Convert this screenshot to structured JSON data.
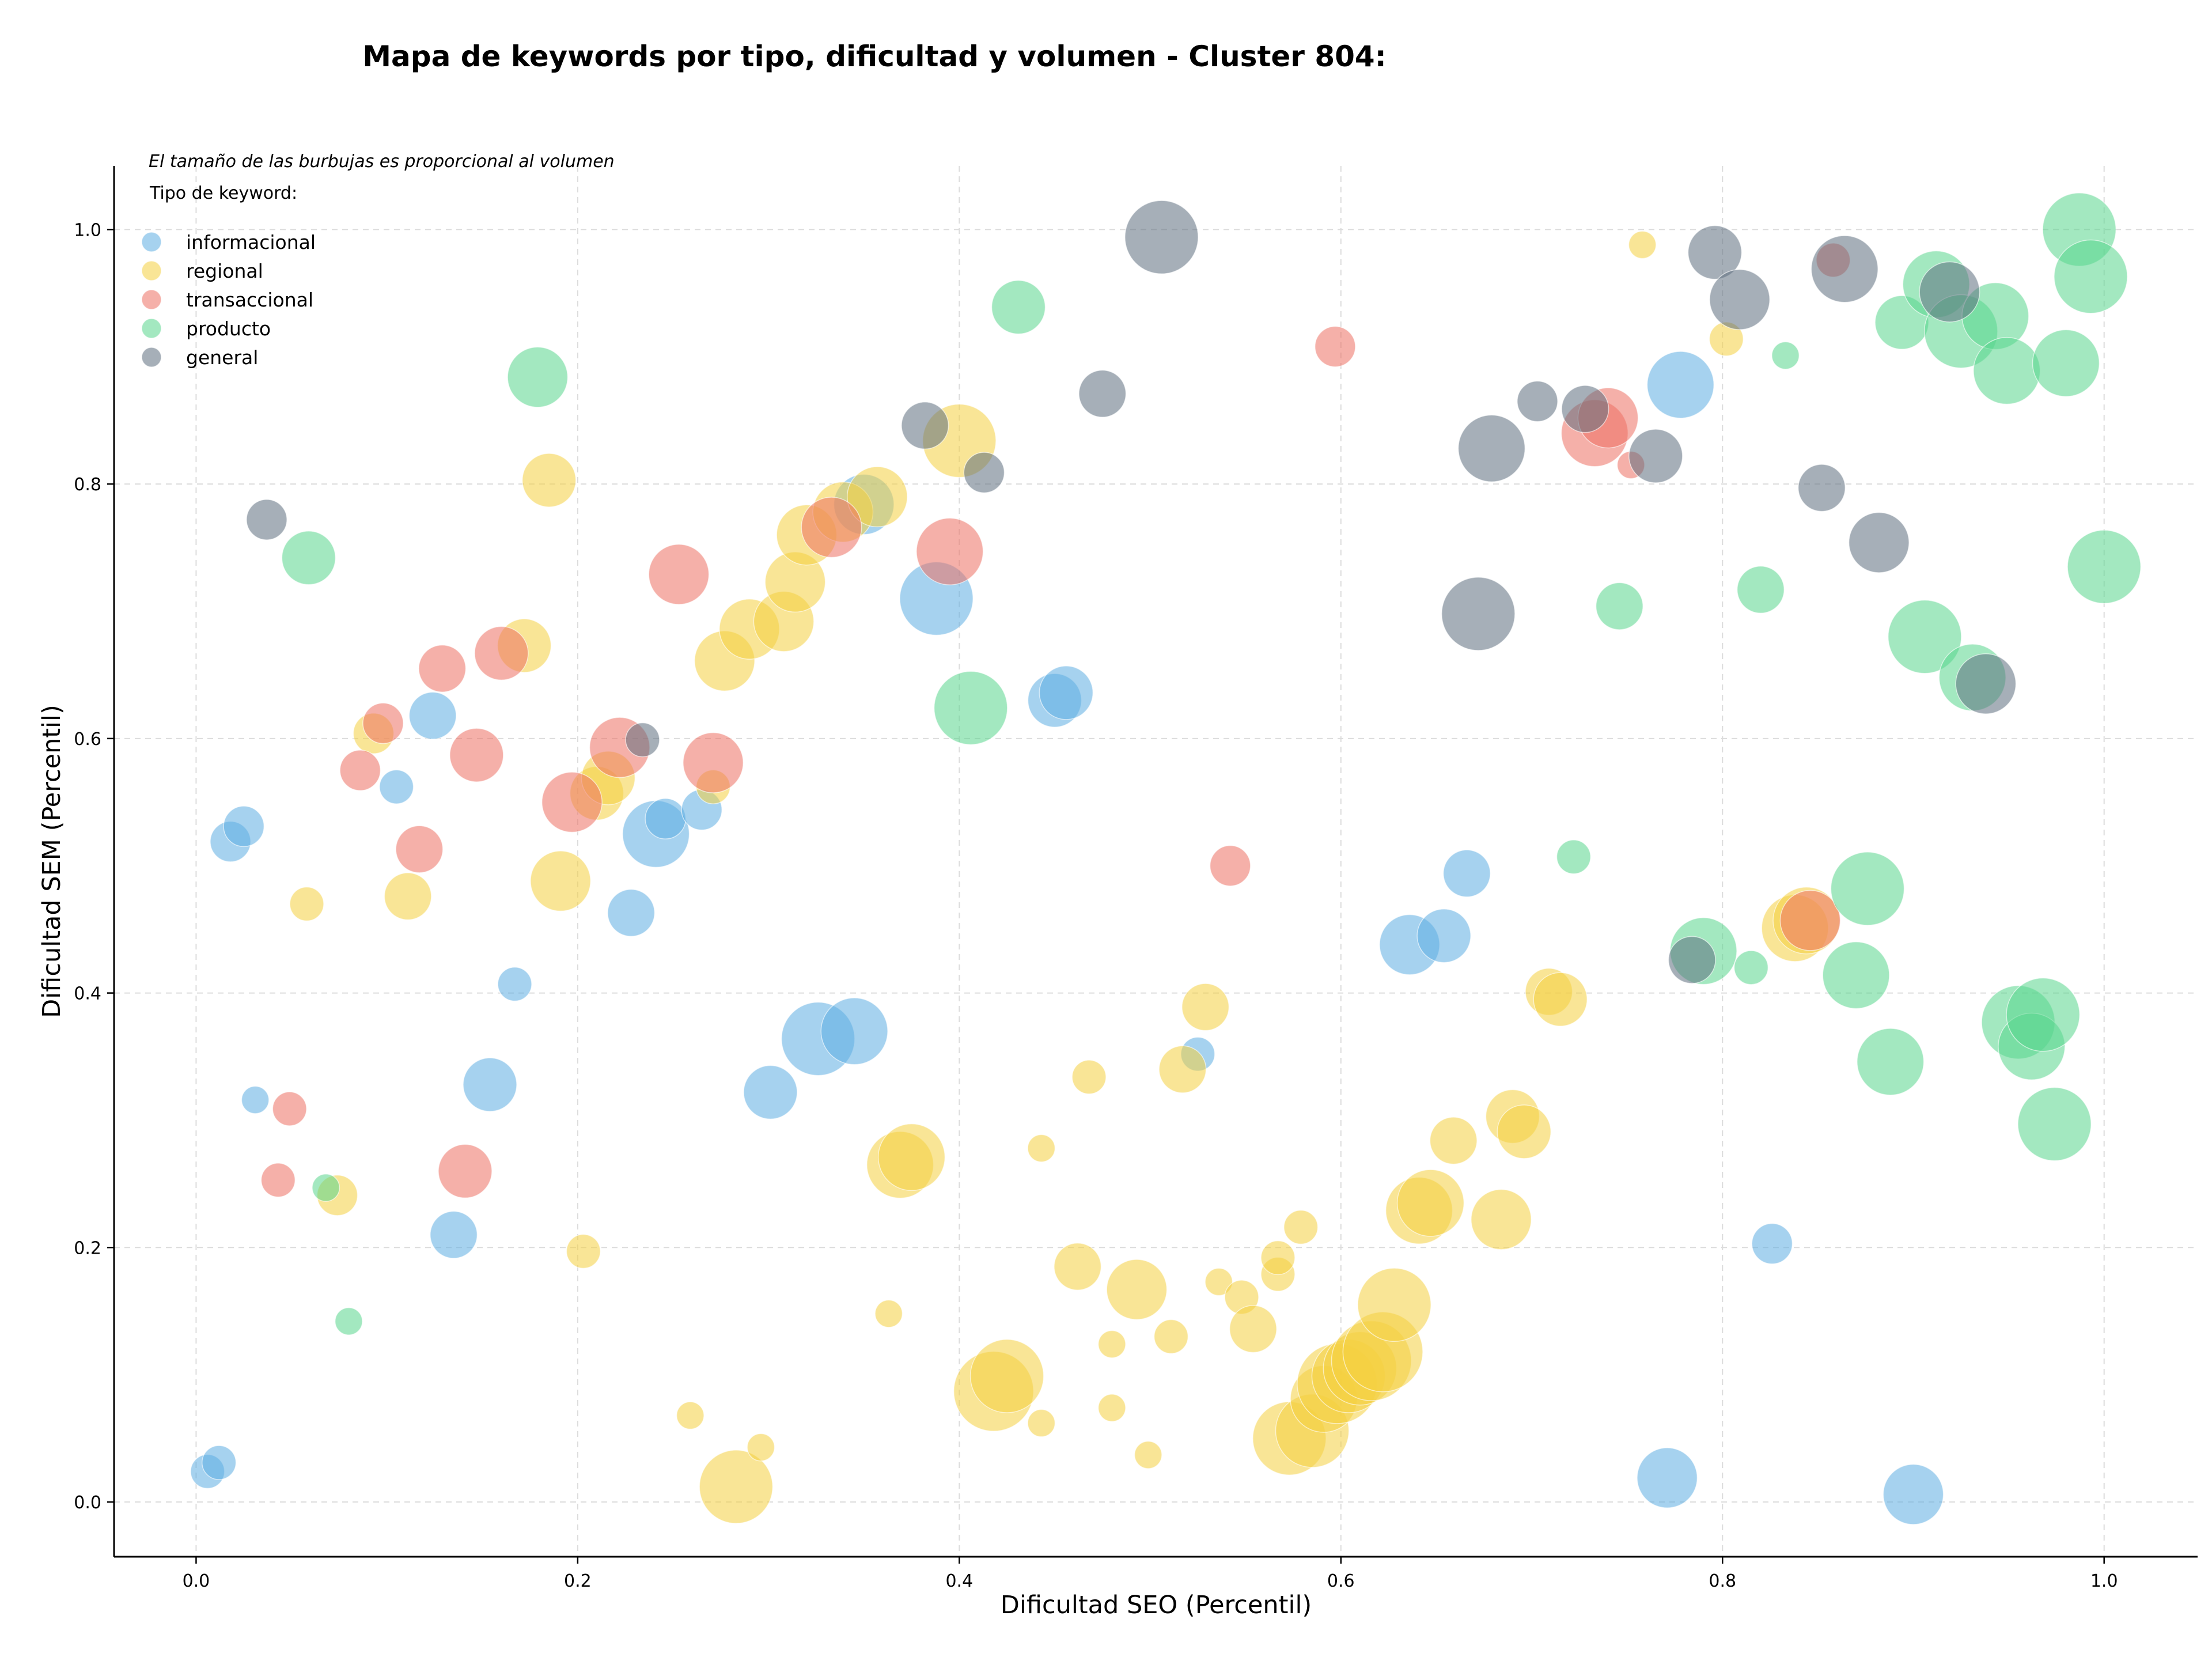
{
  "chart_data": {
    "type": "scatter",
    "title": "Mapa de keywords por tipo, dificultad y volumen - Cluster 804:",
    "xlabel": "Dificultad SEO (Percentil)",
    "ylabel": "Dificultad SEM (Percentil)",
    "xlim": [
      -0.043,
      1.049
    ],
    "ylim": [
      -0.043,
      1.05
    ],
    "xticks": [
      "0.0",
      "0.2",
      "0.4",
      "0.6",
      "0.8",
      "1.0"
    ],
    "yticks": [
      "0.0",
      "0.2",
      "0.4",
      "0.6",
      "0.8",
      "1.0"
    ],
    "grid": true,
    "legend_placement": "top-left",
    "legend_note": "El tamaño de las burbujas es proporcional al volumen",
    "legend_title": "Tipo de keyword:",
    "size_encoding": "bubble area proportional to keyword volume (relative size 1-10)",
    "series": [
      {
        "name": "informacional",
        "color": "#5dade2",
        "points": [
          [
            0.006,
            0.024,
            3
          ],
          [
            0.012,
            0.031,
            3
          ],
          [
            0.018,
            0.519,
            4
          ],
          [
            0.025,
            0.531,
            4
          ],
          [
            0.031,
            0.316,
            2
          ],
          [
            0.105,
            0.562,
            3
          ],
          [
            0.124,
            0.618,
            5
          ],
          [
            0.135,
            0.21,
            5
          ],
          [
            0.154,
            0.328,
            6
          ],
          [
            0.167,
            0.407,
            3
          ],
          [
            0.228,
            0.463,
            5
          ],
          [
            0.241,
            0.525,
            8
          ],
          [
            0.246,
            0.537,
            4
          ],
          [
            0.265,
            0.544,
            4
          ],
          [
            0.301,
            0.322,
            6
          ],
          [
            0.326,
            0.364,
            9
          ],
          [
            0.345,
            0.37,
            8
          ],
          [
            0.35,
            0.784,
            7
          ],
          [
            0.388,
            0.71,
            9
          ],
          [
            0.45,
            0.63,
            6
          ],
          [
            0.456,
            0.636,
            6
          ],
          [
            0.525,
            0.352,
            3
          ],
          [
            0.636,
            0.438,
            7
          ],
          [
            0.654,
            0.445,
            6
          ],
          [
            0.666,
            0.494,
            5
          ],
          [
            0.771,
            0.019,
            7
          ],
          [
            0.778,
            0.878,
            8
          ],
          [
            0.826,
            0.203,
            4
          ],
          [
            0.9,
            0.006,
            7
          ]
        ]
      },
      {
        "name": "regional",
        "color": "#f4d03f",
        "points": [
          [
            0.058,
            0.47,
            3
          ],
          [
            0.074,
            0.241,
            4
          ],
          [
            0.093,
            0.604,
            4
          ],
          [
            0.111,
            0.476,
            5
          ],
          [
            0.172,
            0.673,
            6
          ],
          [
            0.185,
            0.803,
            6
          ],
          [
            0.191,
            0.488,
            7
          ],
          [
            0.203,
            0.197,
            3
          ],
          [
            0.21,
            0.557,
            6
          ],
          [
            0.216,
            0.569,
            6
          ],
          [
            0.259,
            0.068,
            2
          ],
          [
            0.271,
            0.562,
            3
          ],
          [
            0.277,
            0.661,
            7
          ],
          [
            0.283,
            0.012,
            9
          ],
          [
            0.29,
            0.686,
            7
          ],
          [
            0.296,
            0.043,
            2
          ],
          [
            0.308,
            0.692,
            7
          ],
          [
            0.314,
            0.723,
            7
          ],
          [
            0.32,
            0.76,
            7
          ],
          [
            0.339,
            0.778,
            7
          ],
          [
            0.357,
            0.79,
            7
          ],
          [
            0.363,
            0.148,
            2
          ],
          [
            0.369,
            0.265,
            8
          ],
          [
            0.375,
            0.271,
            8
          ],
          [
            0.4,
            0.834,
            9
          ],
          [
            0.418,
            0.087,
            10
          ],
          [
            0.425,
            0.099,
            9
          ],
          [
            0.443,
            0.062,
            2
          ],
          [
            0.443,
            0.278,
            2
          ],
          [
            0.462,
            0.185,
            5
          ],
          [
            0.468,
            0.334,
            3
          ],
          [
            0.48,
            0.124,
            2
          ],
          [
            0.48,
            0.074,
            2
          ],
          [
            0.493,
            0.167,
            7
          ],
          [
            0.499,
            0.037,
            2
          ],
          [
            0.511,
            0.13,
            3
          ],
          [
            0.517,
            0.34,
            5
          ],
          [
            0.529,
            0.389,
            5
          ],
          [
            0.536,
            0.173,
            2
          ],
          [
            0.548,
            0.161,
            3
          ],
          [
            0.554,
            0.136,
            5
          ],
          [
            0.567,
            0.179,
            3
          ],
          [
            0.567,
            0.192,
            3
          ],
          [
            0.573,
            0.05,
            9
          ],
          [
            0.579,
            0.216,
            3
          ],
          [
            0.585,
            0.056,
            9
          ],
          [
            0.591,
            0.081,
            8
          ],
          [
            0.598,
            0.093,
            10
          ],
          [
            0.604,
            0.099,
            9
          ],
          [
            0.61,
            0.105,
            9
          ],
          [
            0.616,
            0.111,
            10
          ],
          [
            0.622,
            0.118,
            10
          ],
          [
            0.628,
            0.155,
            9
          ],
          [
            0.641,
            0.229,
            8
          ],
          [
            0.647,
            0.235,
            8
          ],
          [
            0.659,
            0.284,
            5
          ],
          [
            0.684,
            0.222,
            7
          ],
          [
            0.69,
            0.303,
            6
          ],
          [
            0.696,
            0.291,
            6
          ],
          [
            0.709,
            0.401,
            5
          ],
          [
            0.715,
            0.395,
            6
          ],
          [
            0.758,
            0.988,
            2
          ],
          [
            0.802,
            0.914,
            3
          ],
          [
            0.838,
            0.451,
            8
          ],
          [
            0.844,
            0.457,
            8
          ]
        ]
      },
      {
        "name": "transaccional",
        "color": "#ec7063",
        "points": [
          [
            0.043,
            0.253,
            3
          ],
          [
            0.049,
            0.309,
            3
          ],
          [
            0.086,
            0.575,
            4
          ],
          [
            0.098,
            0.612,
            4
          ],
          [
            0.117,
            0.513,
            5
          ],
          [
            0.129,
            0.655,
            5
          ],
          [
            0.141,
            0.26,
            6
          ],
          [
            0.147,
            0.587,
            6
          ],
          [
            0.16,
            0.667,
            6
          ],
          [
            0.197,
            0.55,
            7
          ],
          [
            0.222,
            0.593,
            7
          ],
          [
            0.253,
            0.729,
            7
          ],
          [
            0.271,
            0.581,
            7
          ],
          [
            0.333,
            0.766,
            7
          ],
          [
            0.395,
            0.747,
            8
          ],
          [
            0.542,
            0.5,
            4
          ],
          [
            0.597,
            0.908,
            4
          ],
          [
            0.733,
            0.84,
            8
          ],
          [
            0.74,
            0.852,
            7
          ],
          [
            0.752,
            0.815,
            2
          ],
          [
            0.846,
            0.457,
            7
          ],
          [
            0.858,
            0.976,
            3
          ]
        ]
      },
      {
        "name": "producto",
        "color": "#58d68d",
        "points": [
          [
            0.068,
            0.247,
            2
          ],
          [
            0.08,
            0.142,
            2
          ],
          [
            0.059,
            0.742,
            6
          ],
          [
            0.179,
            0.884,
            7
          ],
          [
            0.406,
            0.624,
            9
          ],
          [
            0.431,
            0.939,
            6
          ],
          [
            0.722,
            0.507,
            3
          ],
          [
            0.746,
            0.704,
            5
          ],
          [
            0.79,
            0.433,
            8
          ],
          [
            0.815,
            0.42,
            3
          ],
          [
            0.82,
            0.717,
            5
          ],
          [
            0.833,
            0.901,
            2
          ],
          [
            0.87,
            0.414,
            8
          ],
          [
            0.876,
            0.482,
            9
          ],
          [
            0.888,
            0.346,
            8
          ],
          [
            0.894,
            0.927,
            6
          ],
          [
            0.906,
            0.68,
            9
          ],
          [
            0.912,
            0.957,
            8
          ],
          [
            0.925,
            0.92,
            9
          ],
          [
            0.931,
            0.648,
            8
          ],
          [
            0.943,
            0.932,
            8
          ],
          [
            0.949,
            0.889,
            8
          ],
          [
            0.955,
            0.377,
            9
          ],
          [
            0.962,
            0.358,
            8
          ],
          [
            0.968,
            0.383,
            9
          ],
          [
            0.974,
            0.297,
            9
          ],
          [
            0.98,
            0.895,
            8
          ],
          [
            0.987,
            1.0,
            9
          ],
          [
            0.993,
            0.963,
            9
          ],
          [
            1.0,
            0.735,
            9
          ]
        ]
      },
      {
        "name": "general",
        "color": "#5d6d7e",
        "points": [
          [
            0.037,
            0.772,
            4
          ],
          [
            0.234,
            0.599,
            3
          ],
          [
            0.382,
            0.846,
            5
          ],
          [
            0.413,
            0.809,
            4
          ],
          [
            0.475,
            0.871,
            5
          ],
          [
            0.506,
            0.994,
            9
          ],
          [
            0.672,
            0.698,
            9
          ],
          [
            0.679,
            0.828,
            8
          ],
          [
            0.703,
            0.865,
            4
          ],
          [
            0.728,
            0.859,
            5
          ],
          [
            0.765,
            0.822,
            6
          ],
          [
            0.784,
            0.426,
            5
          ],
          [
            0.796,
            0.982,
            6
          ],
          [
            0.809,
            0.945,
            7
          ],
          [
            0.852,
            0.797,
            5
          ],
          [
            0.864,
            0.969,
            8
          ],
          [
            0.882,
            0.754,
            7
          ],
          [
            0.919,
            0.951,
            7
          ],
          [
            0.938,
            0.643,
            7
          ]
        ]
      }
    ]
  }
}
